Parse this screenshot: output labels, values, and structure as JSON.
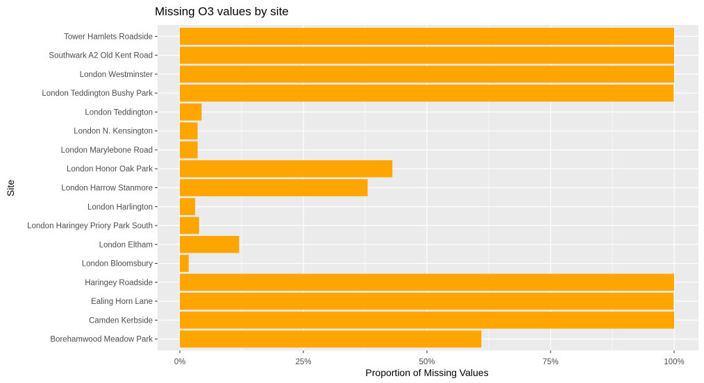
{
  "chart_data": {
    "type": "bar",
    "orientation": "horizontal",
    "title": "Missing O3 values by site",
    "xlabel": "Proportion of Missing Values",
    "ylabel": "Site",
    "xlim": [
      0,
      1
    ],
    "x_ticks": [
      0,
      0.25,
      0.5,
      0.75,
      1
    ],
    "x_tick_labels": [
      "0%",
      "25%",
      "50%",
      "75%",
      "100%"
    ],
    "categories": [
      "Tower Hamlets Roadside",
      "Southwark A2 Old Kent Road",
      "London Westminster",
      "London Teddington Bushy Park",
      "London Teddington",
      "London N. Kensington",
      "London Marylebone Road",
      "London Honor Oak Park",
      "London Harrow Stanmore",
      "London Harlington",
      "London Haringey Priory Park South",
      "London Eltham",
      "London Bloomsbury",
      "Haringey Roadside",
      "Ealing Horn Lane",
      "Camden Kerbside",
      "Borehamwood Meadow Park"
    ],
    "values": [
      1.0,
      1.0,
      1.0,
      0.999,
      0.044,
      0.036,
      0.036,
      0.43,
      0.38,
      0.031,
      0.039,
      0.12,
      0.018,
      1.0,
      0.999,
      1.0,
      0.61
    ],
    "grid": true,
    "colors": {
      "bar": "#FFA500",
      "panel_background": "#EBEBEB",
      "grid": "#FFFFFF",
      "text": "#4D4D4D",
      "tick": "#333333"
    }
  }
}
